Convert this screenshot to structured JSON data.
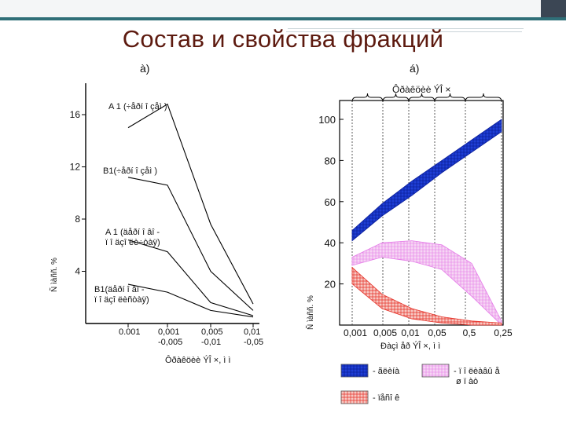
{
  "slide": {
    "title": "Состав и свойства фракций"
  },
  "chart_a": {
    "panel_label": "à)",
    "y_ticks": [
      "16",
      "12",
      "8",
      "4"
    ],
    "y_axis_label": "Ñ ìàññ. %",
    "x_ticks": [
      "0.001",
      "0,001\n-0,005",
      "0,005\n-0,01",
      "0,01\n-0,05"
    ],
    "x_axis_label": "Ôðàêöèè ÝÎ ×, ì ì",
    "series_labels": [
      "A 1 (÷åðí î çåì )",
      "B1(÷åðí î çåì )",
      "A 1 (äåðí î âî -\nï î äçî ëè÷òàÿ)",
      "B1(äåðí î âî -\nï î äçî ëèñòàÿ)"
    ]
  },
  "chart_b": {
    "panel_label": "á)",
    "bracket_label": "Ôðàêöèè ÝÎ ×",
    "y_ticks": [
      "100",
      "80",
      "60",
      "40",
      "20"
    ],
    "y_axis_label": "Ñ ìàññ. %",
    "x_ticks": [
      "0,001",
      "0,005",
      "0,01",
      "0,05",
      "0,5",
      "0,25"
    ],
    "x_axis_label": "Ðàçì åð ÝÎ ×, ì ì",
    "legend": [
      {
        "label": "- ãëèíà",
        "color": "#1f3fd6",
        "key": "blue"
      },
      {
        "label": "- ï î ëèàâû å\n ø ï àò",
        "color": "#e57be8",
        "key": "pink"
      },
      {
        "label": "- ïåñî ê",
        "color": "#e6332a",
        "key": "red"
      }
    ]
  },
  "colors": {
    "title": "#5d1a0f",
    "accent_bar": "#2f6f78",
    "dark_corner": "#3b4654"
  },
  "chart_data": [
    {
      "type": "line",
      "title": "",
      "xlabel": "Ôðàêöèè ÝÎ ×, ì ì",
      "ylabel": "Ñ ìàññ. %",
      "categories": [
        "0.001",
        "0,001-0,005",
        "0,005-0,01",
        "0,01-0,05"
      ],
      "ylim": [
        0,
        18
      ],
      "series": [
        {
          "name": "A 1 (÷åðí î çåì )",
          "values": [
            15.0,
            16.8,
            7.6,
            1.5
          ]
        },
        {
          "name": "B1(÷åðí î çåì )",
          "values": [
            11.2,
            10.6,
            4.0,
            1.0
          ]
        },
        {
          "name": "A 1 (äåðí î âî -ï î äçî ëè÷òàÿ)",
          "values": [
            6.4,
            5.5,
            1.6,
            0.6
          ]
        },
        {
          "name": "B1(äåðí î âî -ï î äçî ëèñòàÿ)",
          "values": [
            3.0,
            2.4,
            1.0,
            0.5
          ]
        }
      ]
    },
    {
      "type": "area",
      "title": "",
      "xlabel": "Ðàçì åð ÝÎ ×, ì ì",
      "ylabel": "Ñ ìàññ. %",
      "x": [
        "0,001",
        "0,005",
        "0,01",
        "0,05",
        "0,5",
        "0,25"
      ],
      "ylim": [
        0,
        105
      ],
      "series": [
        {
          "name": "- ãëèíà",
          "lower": [
            41,
            53,
            63,
            74,
            84,
            94
          ],
          "upper": [
            46,
            59,
            70,
            80,
            90,
            100
          ]
        },
        {
          "name": "- ï î ëèàâû å ø ï àò",
          "lower": [
            29,
            33,
            31,
            27,
            14,
            0
          ],
          "upper": [
            33,
            40,
            41,
            39,
            30,
            2
          ]
        },
        {
          "name": "- ïåñî ê",
          "lower": [
            20,
            8,
            3,
            1,
            0,
            0
          ],
          "upper": [
            28,
            15,
            8,
            4,
            2,
            1
          ]
        }
      ]
    }
  ]
}
